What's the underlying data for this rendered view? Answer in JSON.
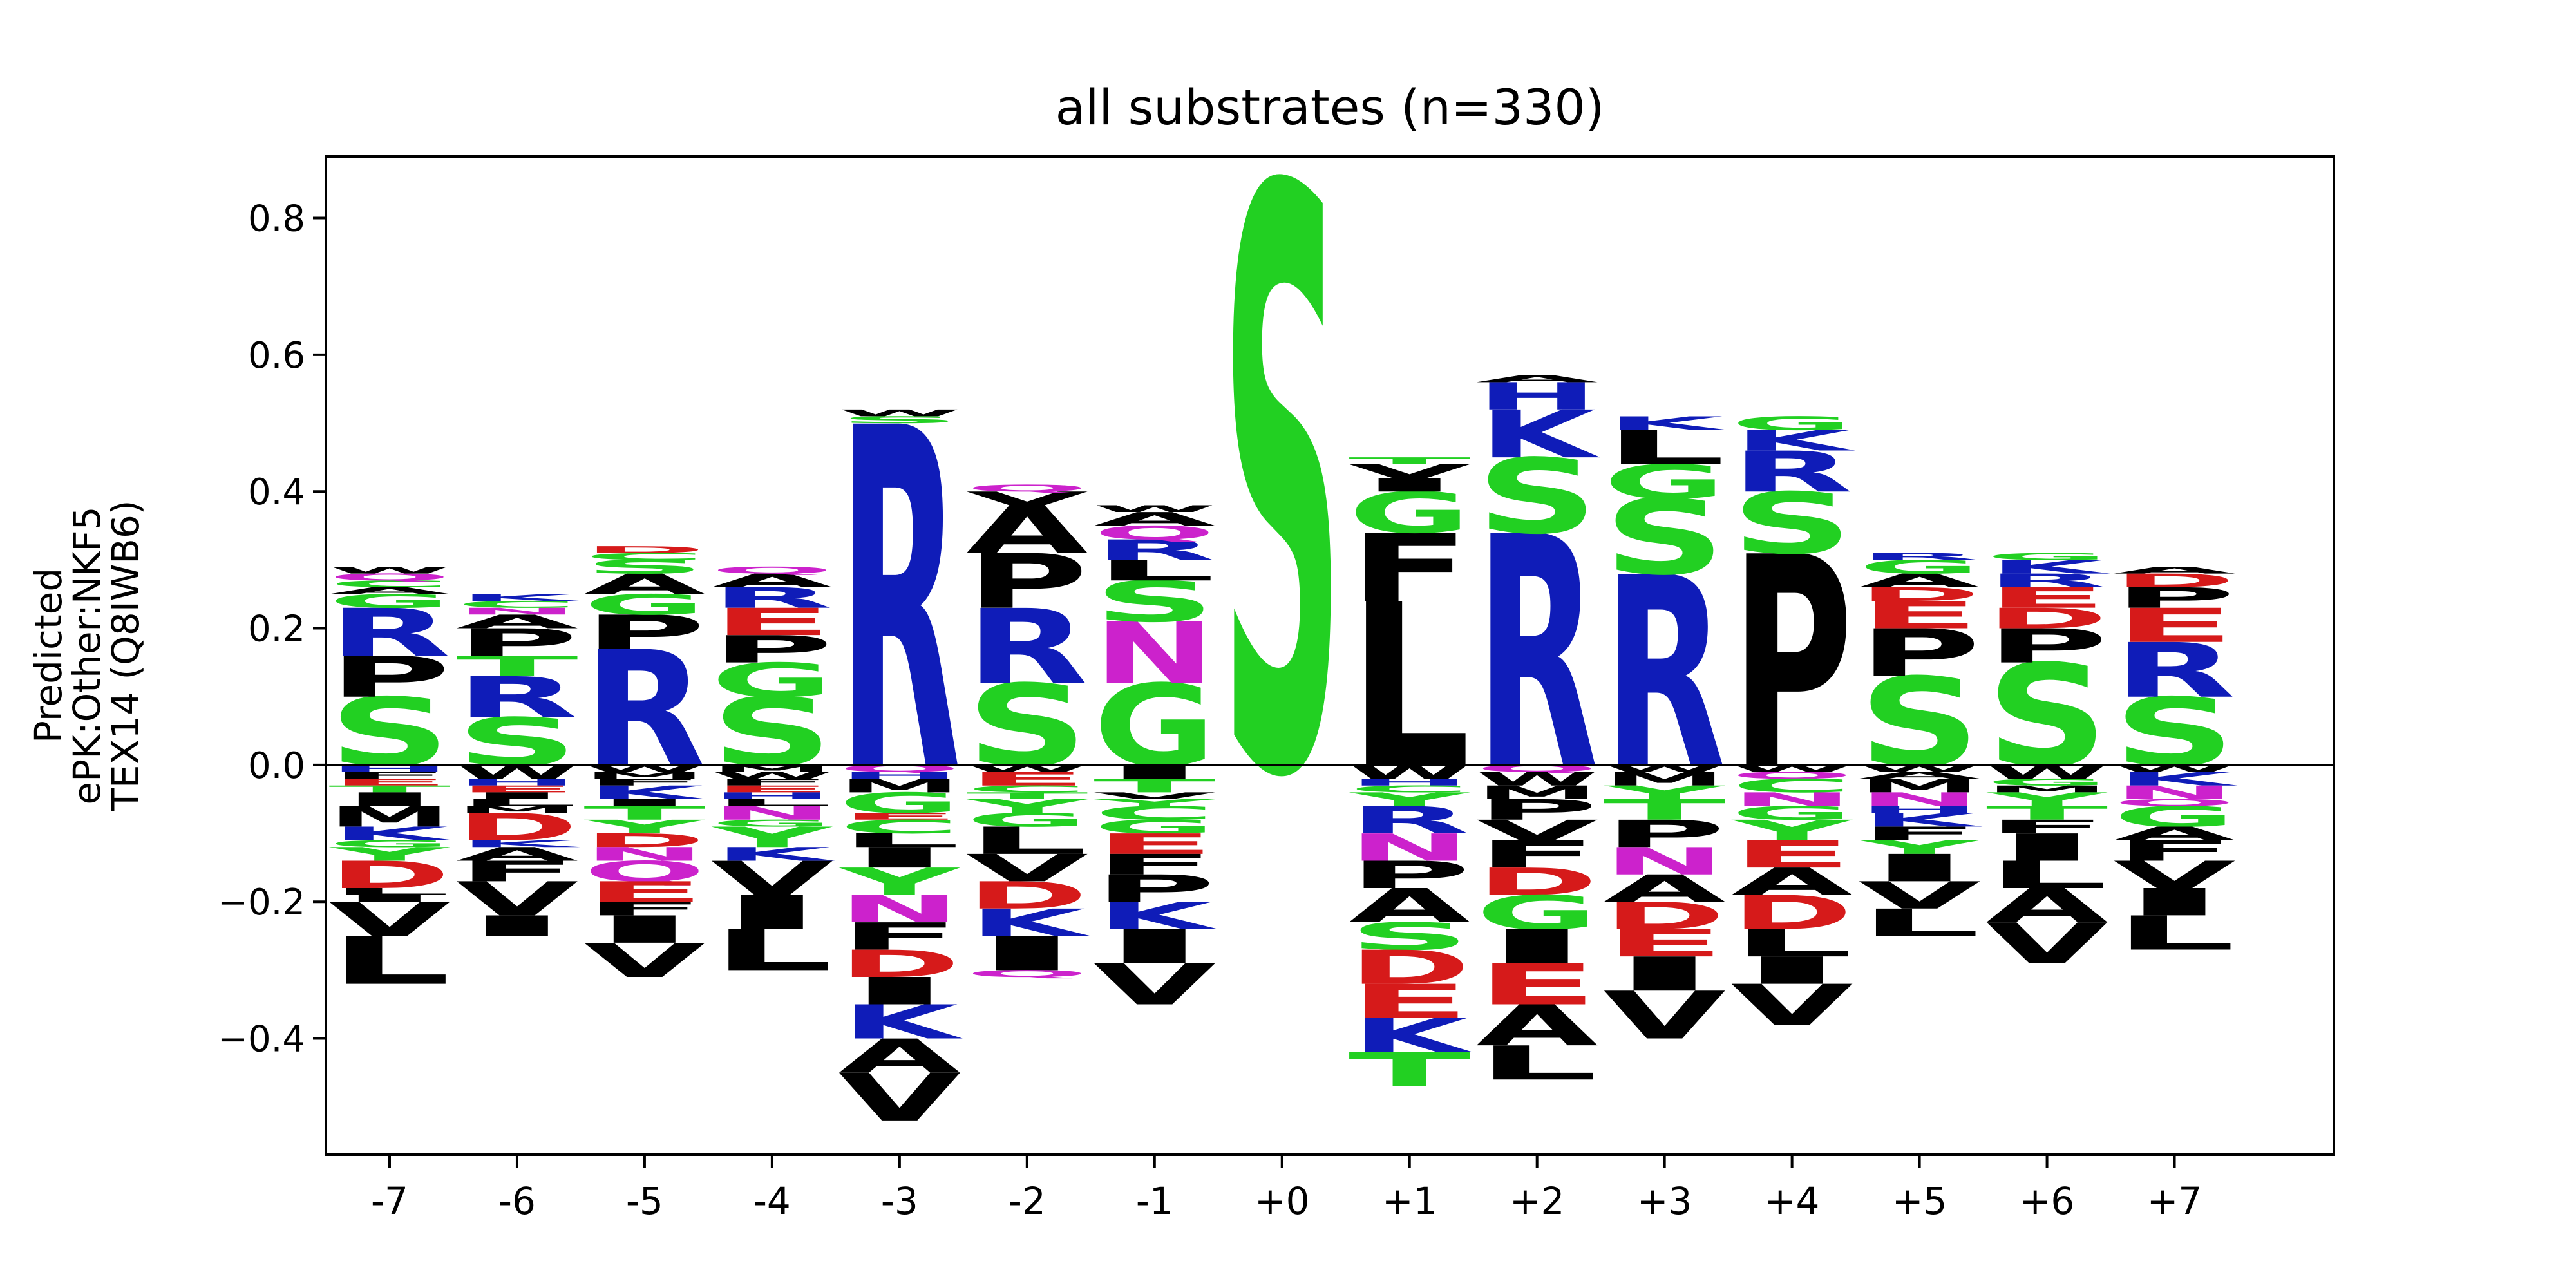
{
  "chart_data": {
    "type": "sequence-logo",
    "title": "all substrates (n=330)",
    "ylabel_lines": [
      "Predicted",
      "ePK:Other:NKF5",
      "TEX14 (Q8IWB6)"
    ],
    "xlabel": "",
    "ylim": [
      -0.57,
      0.89
    ],
    "yticks": [
      -0.4,
      -0.2,
      0.0,
      0.2,
      0.4,
      0.6,
      0.8
    ],
    "positions": [
      "-7",
      "-6",
      "-5",
      "-4",
      "-3",
      "-2",
      "-1",
      "+0",
      "+1",
      "+2",
      "+3",
      "+4",
      "+5",
      "+6",
      "+7"
    ],
    "colors": {
      "polar": "#22d022",
      "basic": "#0f1cb8",
      "acidic": "#d61a1a",
      "amide": "#cc22cc",
      "hydrophobic": "#000000"
    },
    "residue_colors": {
      "S": "polar",
      "T": "polar",
      "G": "polar",
      "Y": "polar",
      "C": "polar",
      "R": "basic",
      "K": "basic",
      "H": "basic",
      "D": "acidic",
      "E": "acidic",
      "N": "amide",
      "Q": "amide",
      "P": "hydrophobic",
      "A": "hydrophobic",
      "W": "hydrophobic",
      "F": "hydrophobic",
      "L": "hydrophobic",
      "I": "hydrophobic",
      "M": "hydrophobic",
      "V": "hydrophobic"
    },
    "stacks": [
      {
        "pos": "-7",
        "positive": [
          [
            "S",
            0.1
          ],
          [
            "P",
            0.06
          ],
          [
            "R",
            0.07
          ],
          [
            "G",
            0.02
          ],
          [
            "A",
            0.01
          ],
          [
            "C",
            0.01
          ],
          [
            "Q",
            0.01
          ],
          [
            "W",
            0.01
          ]
        ],
        "negative": [
          [
            "H",
            0.01
          ],
          [
            "F",
            0.01
          ],
          [
            "E",
            0.01
          ],
          [
            "T",
            0.01
          ],
          [
            "I",
            0.02
          ],
          [
            "M",
            0.03
          ],
          [
            "K",
            0.02
          ],
          [
            "G",
            0.01
          ],
          [
            "Y",
            0.02
          ],
          [
            "D",
            0.04
          ],
          [
            "L",
            0.01
          ],
          [
            "I",
            0.01
          ],
          [
            "V",
            0.05
          ],
          [
            "L",
            0.07
          ]
        ]
      },
      {
        "pos": "-6",
        "positive": [
          [
            "S",
            0.07
          ],
          [
            "R",
            0.06
          ],
          [
            "T",
            0.03
          ],
          [
            "P",
            0.04
          ],
          [
            "A",
            0.02
          ],
          [
            "N",
            0.01
          ],
          [
            "C",
            0.01
          ],
          [
            "K",
            0.01
          ]
        ],
        "negative": [
          [
            "W",
            0.02
          ],
          [
            "H",
            0.01
          ],
          [
            "E",
            0.01
          ],
          [
            "I",
            0.01
          ],
          [
            "L",
            0.01
          ],
          [
            "M",
            0.01
          ],
          [
            "D",
            0.04
          ],
          [
            "K",
            0.01
          ],
          [
            "A",
            0.02
          ],
          [
            "F",
            0.03
          ],
          [
            "V",
            0.05
          ],
          [
            "I",
            0.03
          ]
        ]
      },
      {
        "pos": "-5",
        "positive": [
          [
            "R",
            0.17
          ],
          [
            "P",
            0.05
          ],
          [
            "G",
            0.03
          ],
          [
            "A",
            0.03
          ],
          [
            "S",
            0.02
          ],
          [
            "C",
            0.01
          ],
          [
            "D",
            0.01
          ]
        ],
        "negative": [
          [
            "W",
            0.01
          ],
          [
            "M",
            0.01
          ],
          [
            "F",
            0.01
          ],
          [
            "K",
            0.02
          ],
          [
            "I",
            0.01
          ],
          [
            "T",
            0.02
          ],
          [
            "Y",
            0.02
          ],
          [
            "D",
            0.02
          ],
          [
            "N",
            0.02
          ],
          [
            "Q",
            0.03
          ],
          [
            "E",
            0.03
          ],
          [
            "F",
            0.02
          ],
          [
            "I",
            0.04
          ],
          [
            "V",
            0.05
          ]
        ]
      },
      {
        "pos": "-4",
        "positive": [
          [
            "S",
            0.1
          ],
          [
            "G",
            0.05
          ],
          [
            "P",
            0.04
          ],
          [
            "E",
            0.04
          ],
          [
            "R",
            0.03
          ],
          [
            "A",
            0.02
          ],
          [
            "Q",
            0.01
          ]
        ],
        "negative": [
          [
            "M",
            0.01
          ],
          [
            "W",
            0.01
          ],
          [
            "F",
            0.01
          ],
          [
            "E",
            0.01
          ],
          [
            "H",
            0.01
          ],
          [
            "L",
            0.01
          ],
          [
            "N",
            0.02
          ],
          [
            "G",
            0.01
          ],
          [
            "Y",
            0.03
          ],
          [
            "K",
            0.02
          ],
          [
            "V",
            0.05
          ],
          [
            "I",
            0.05
          ],
          [
            "L",
            0.06
          ]
        ]
      },
      {
        "pos": "-3",
        "positive": [
          [
            "R",
            0.5
          ],
          [
            "S",
            0.01
          ],
          [
            "W",
            0.01
          ]
        ],
        "negative": [
          [
            "Q",
            0.01
          ],
          [
            "H",
            0.01
          ],
          [
            "M",
            0.02
          ],
          [
            "G",
            0.03
          ],
          [
            "E",
            0.01
          ],
          [
            "C",
            0.02
          ],
          [
            "L",
            0.02
          ],
          [
            "I",
            0.03
          ],
          [
            "Y",
            0.04
          ],
          [
            "N",
            0.04
          ],
          [
            "F",
            0.04
          ],
          [
            "D",
            0.04
          ],
          [
            "I",
            0.04
          ],
          [
            "K",
            0.05
          ],
          [
            "A",
            0.05
          ],
          [
            "V",
            0.07
          ]
        ]
      },
      {
        "pos": "-2",
        "positive": [
          [
            "S",
            0.12
          ],
          [
            "R",
            0.11
          ],
          [
            "P",
            0.08
          ],
          [
            "A",
            0.07
          ],
          [
            "V",
            0.02
          ],
          [
            "Q",
            0.01
          ]
        ],
        "negative": [
          [
            "W",
            0.01
          ],
          [
            "E",
            0.02
          ],
          [
            "C",
            0.01
          ],
          [
            "T",
            0.01
          ],
          [
            "Y",
            0.02
          ],
          [
            "G",
            0.02
          ],
          [
            "L",
            0.04
          ],
          [
            "V",
            0.04
          ],
          [
            "D",
            0.04
          ],
          [
            "K",
            0.04
          ],
          [
            "I",
            0.05
          ],
          [
            "Q",
            0.01
          ]
        ]
      },
      {
        "pos": "-1",
        "positive": [
          [
            "G",
            0.12
          ],
          [
            "N",
            0.09
          ],
          [
            "S",
            0.06
          ],
          [
            "L",
            0.03
          ],
          [
            "R",
            0.03
          ],
          [
            "Q",
            0.02
          ],
          [
            "A",
            0.02
          ],
          [
            "W",
            0.01
          ]
        ],
        "negative": [
          [
            "I",
            0.02
          ],
          [
            "T",
            0.02
          ],
          [
            "V",
            0.01
          ],
          [
            "Y",
            0.01
          ],
          [
            "C",
            0.02
          ],
          [
            "G",
            0.02
          ],
          [
            "E",
            0.03
          ],
          [
            "F",
            0.03
          ],
          [
            "P",
            0.04
          ],
          [
            "K",
            0.04
          ],
          [
            "I",
            0.05
          ],
          [
            "V",
            0.06
          ]
        ]
      },
      {
        "pos": "+0",
        "positive": [
          [
            "S",
            0.85
          ]
        ],
        "negative": []
      },
      {
        "pos": "+1",
        "positive": [
          [
            "L",
            0.24
          ],
          [
            "F",
            0.1
          ],
          [
            "G",
            0.06
          ],
          [
            "I",
            0.02
          ],
          [
            "V",
            0.02
          ],
          [
            "T",
            0.01
          ]
        ],
        "negative": [
          [
            "W",
            0.02
          ],
          [
            "H",
            0.01
          ],
          [
            "C",
            0.01
          ],
          [
            "Y",
            0.02
          ],
          [
            "R",
            0.04
          ],
          [
            "N",
            0.04
          ],
          [
            "P",
            0.04
          ],
          [
            "A",
            0.05
          ],
          [
            "S",
            0.04
          ],
          [
            "D",
            0.05
          ],
          [
            "E",
            0.05
          ],
          [
            "K",
            0.05
          ],
          [
            "T",
            0.05
          ]
        ]
      },
      {
        "pos": "+2",
        "positive": [
          [
            "R",
            0.34
          ],
          [
            "S",
            0.11
          ],
          [
            "K",
            0.07
          ],
          [
            "H",
            0.04
          ],
          [
            "A",
            0.01
          ]
        ],
        "negative": [
          [
            "Q",
            0.01
          ],
          [
            "W",
            0.02
          ],
          [
            "M",
            0.02
          ],
          [
            "P",
            0.03
          ],
          [
            "V",
            0.03
          ],
          [
            "F",
            0.04
          ],
          [
            "D",
            0.04
          ],
          [
            "G",
            0.05
          ],
          [
            "I",
            0.05
          ],
          [
            "E",
            0.06
          ],
          [
            "A",
            0.06
          ],
          [
            "L",
            0.05
          ]
        ]
      },
      {
        "pos": "+3",
        "positive": [
          [
            "R",
            0.28
          ],
          [
            "S",
            0.11
          ],
          [
            "G",
            0.05
          ],
          [
            "L",
            0.05
          ],
          [
            "K",
            0.02
          ]
        ],
        "negative": [
          [
            "W",
            0.01
          ],
          [
            "M",
            0.02
          ],
          [
            "Y",
            0.02
          ],
          [
            "T",
            0.03
          ],
          [
            "P",
            0.04
          ],
          [
            "N",
            0.04
          ],
          [
            "A",
            0.04
          ],
          [
            "D",
            0.04
          ],
          [
            "E",
            0.04
          ],
          [
            "I",
            0.05
          ],
          [
            "V",
            0.07
          ]
        ]
      },
      {
        "pos": "+4",
        "positive": [
          [
            "P",
            0.31
          ],
          [
            "S",
            0.09
          ],
          [
            "R",
            0.06
          ],
          [
            "K",
            0.03
          ],
          [
            "G",
            0.02
          ]
        ],
        "negative": [
          [
            "W",
            0.01
          ],
          [
            "Q",
            0.01
          ],
          [
            "C",
            0.02
          ],
          [
            "N",
            0.02
          ],
          [
            "G",
            0.02
          ],
          [
            "Y",
            0.03
          ],
          [
            "E",
            0.04
          ],
          [
            "A",
            0.04
          ],
          [
            "D",
            0.05
          ],
          [
            "L",
            0.04
          ],
          [
            "I",
            0.04
          ],
          [
            "V",
            0.06
          ]
        ]
      },
      {
        "pos": "+5",
        "positive": [
          [
            "S",
            0.13
          ],
          [
            "P",
            0.07
          ],
          [
            "E",
            0.04
          ],
          [
            "D",
            0.02
          ],
          [
            "A",
            0.02
          ],
          [
            "G",
            0.02
          ],
          [
            "R",
            0.01
          ]
        ],
        "negative": [
          [
            "W",
            0.01
          ],
          [
            "A",
            0.01
          ],
          [
            "M",
            0.02
          ],
          [
            "N",
            0.02
          ],
          [
            "H",
            0.01
          ],
          [
            "K",
            0.02
          ],
          [
            "F",
            0.02
          ],
          [
            "Y",
            0.02
          ],
          [
            "I",
            0.04
          ],
          [
            "V",
            0.04
          ],
          [
            "L",
            0.04
          ]
        ]
      },
      {
        "pos": "+6",
        "positive": [
          [
            "S",
            0.15
          ],
          [
            "P",
            0.05
          ],
          [
            "D",
            0.03
          ],
          [
            "E",
            0.03
          ],
          [
            "R",
            0.02
          ],
          [
            "K",
            0.02
          ],
          [
            "G",
            0.01
          ]
        ],
        "negative": [
          [
            "W",
            0.02
          ],
          [
            "G",
            0.01
          ],
          [
            "M",
            0.01
          ],
          [
            "Y",
            0.02
          ],
          [
            "T",
            0.02
          ],
          [
            "F",
            0.02
          ],
          [
            "I",
            0.04
          ],
          [
            "L",
            0.04
          ],
          [
            "A",
            0.05
          ],
          [
            "V",
            0.06
          ]
        ]
      },
      {
        "pos": "+7",
        "positive": [
          [
            "S",
            0.1
          ],
          [
            "R",
            0.08
          ],
          [
            "E",
            0.05
          ],
          [
            "P",
            0.03
          ],
          [
            "D",
            0.02
          ],
          [
            "A",
            0.01
          ]
        ],
        "negative": [
          [
            "W",
            0.01
          ],
          [
            "K",
            0.02
          ],
          [
            "N",
            0.02
          ],
          [
            "Q",
            0.01
          ],
          [
            "G",
            0.03
          ],
          [
            "A",
            0.02
          ],
          [
            "F",
            0.03
          ],
          [
            "V",
            0.04
          ],
          [
            "I",
            0.04
          ],
          [
            "L",
            0.05
          ]
        ]
      }
    ]
  }
}
